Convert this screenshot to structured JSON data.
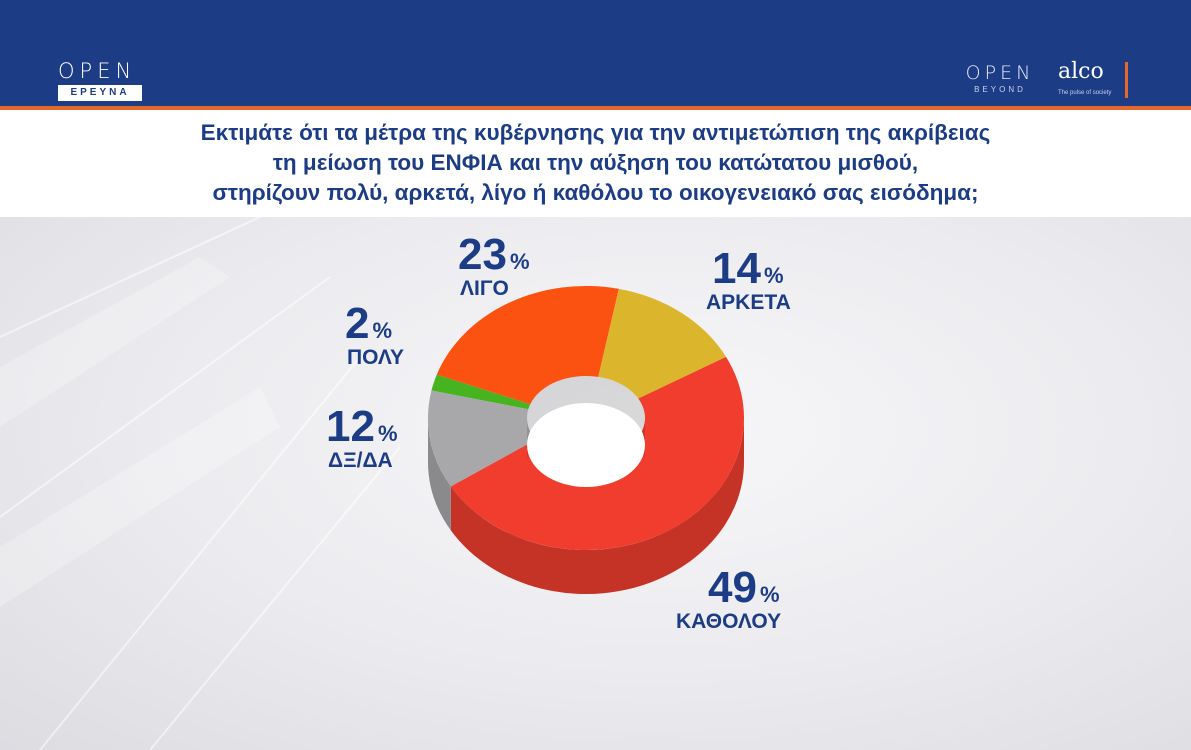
{
  "header": {
    "brand_left": {
      "word": "OPEN",
      "tag": "ΕΡΕΥΝΑ"
    },
    "brand_right": {
      "word": "OPEN",
      "sub": "BEYOND"
    },
    "partner": {
      "word": "alco",
      "tagline": "The pulse of society"
    }
  },
  "question": {
    "line1": "Εκτιμάτε ότι τα μέτρα της κυβέρνησης για την αντιμετώπιση της ακρίβειας",
    "line2": "τη μείωση του ΕΝΦΙΑ και την αύξηση του κατώτατου μισθού,",
    "line3": "στηρίζουν πολύ, αρκετά, λίγο ή καθόλου το οικογενειακό σας εισόδημα;"
  },
  "chart_data": {
    "type": "pie",
    "style": "3d-donut",
    "unit": "%",
    "slices": [
      {
        "label": "ΠΟΛΥ",
        "value": 2,
        "color": "#46b31f"
      },
      {
        "label": "ΛΙΓΟ",
        "value": 23,
        "color": "#fb5212"
      },
      {
        "label": "ΑΡΚΕΤΑ",
        "value": 14,
        "color": "#dbb52c"
      },
      {
        "label": "ΚΑΘΟΛΟΥ",
        "value": 49,
        "color": "#f03d2e"
      },
      {
        "label": "ΔΞ/ΔΑ",
        "value": 12,
        "color": "#a8a8ab"
      }
    ]
  },
  "colors": {
    "header_bg": "#1d3c86",
    "accent": "#e4682a",
    "text": "#1d3c86"
  }
}
